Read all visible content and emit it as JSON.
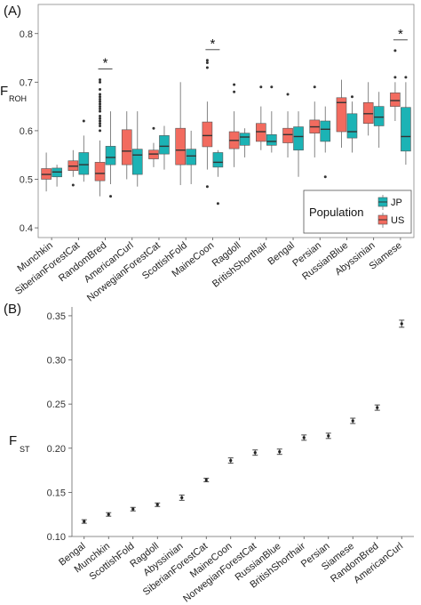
{
  "panel_a": {
    "label": "(A)"
  },
  "panel_b": {
    "label": "(B)"
  },
  "chart_data": [
    {
      "type": "box",
      "ylabel_main": "F",
      "ylabel_sub": "ROH",
      "ylim": [
        0.38,
        0.86
      ],
      "yticks": [
        "0.4",
        "0.5",
        "0.6",
        "0.7",
        "0.8"
      ],
      "legend": {
        "title": "Population",
        "placement": "bottom-right"
      },
      "categories": [
        "Munchkin",
        "SiberianForestCat",
        "RandomBred",
        "AmericanCurl",
        "NorwegianForestCat",
        "ScottishFold",
        "MaineCoon",
        "Ragdoll",
        "BritishShorthair",
        "Bengal",
        "Persian",
        "RussianBlue",
        "Abyssinian",
        "Siamese"
      ],
      "significant": [
        "RandomBred",
        "MaineCoon",
        "Siamese"
      ],
      "significance_mark": "*",
      "series": [
        {
          "name": "US",
          "color": "#f26b5f",
          "boxes": [
            {
              "whislo": 0.475,
              "q1": 0.5,
              "med": 0.51,
              "q3": 0.522,
              "whishi": 0.555,
              "fliers": []
            },
            {
              "whislo": 0.505,
              "q1": 0.518,
              "med": 0.527,
              "q3": 0.538,
              "whishi": 0.56,
              "fliers": [
                0.488
              ]
            },
            {
              "whislo": 0.465,
              "q1": 0.497,
              "med": 0.512,
              "q3": 0.535,
              "whishi": 0.58,
              "fliers": [
                0.6,
                0.61,
                0.615,
                0.62,
                0.625,
                0.63,
                0.64,
                0.645,
                0.65,
                0.655,
                0.66,
                0.665,
                0.67,
                0.675,
                0.685,
                0.7,
                0.705
              ]
            },
            {
              "whislo": 0.5,
              "q1": 0.53,
              "med": 0.558,
              "q3": 0.602,
              "whishi": 0.64,
              "fliers": []
            },
            {
              "whislo": 0.525,
              "q1": 0.542,
              "med": 0.552,
              "q3": 0.56,
              "whishi": 0.575,
              "fliers": [
                0.605
              ]
            },
            {
              "whislo": 0.488,
              "q1": 0.53,
              "med": 0.56,
              "q3": 0.605,
              "whishi": 0.7,
              "fliers": []
            },
            {
              "whislo": 0.52,
              "q1": 0.567,
              "med": 0.59,
              "q3": 0.618,
              "whishi": 0.66,
              "fliers": [
                0.485,
                0.73,
                0.74,
                0.745
              ]
            },
            {
              "whislo": 0.525,
              "q1": 0.563,
              "med": 0.58,
              "q3": 0.598,
              "whishi": 0.64,
              "fliers": [
                0.68,
                0.695
              ]
            },
            {
              "whislo": 0.56,
              "q1": 0.578,
              "med": 0.598,
              "q3": 0.615,
              "whishi": 0.65,
              "fliers": [
                0.69
              ]
            },
            {
              "whislo": 0.545,
              "q1": 0.575,
              "med": 0.592,
              "q3": 0.605,
              "whishi": 0.64,
              "fliers": [
                0.675
              ]
            },
            {
              "whislo": 0.545,
              "q1": 0.595,
              "med": 0.608,
              "q3": 0.622,
              "whishi": 0.66,
              "fliers": [
                0.69
              ]
            },
            {
              "whislo": 0.565,
              "q1": 0.598,
              "med": 0.658,
              "q3": 0.668,
              "whishi": 0.705,
              "fliers": []
            },
            {
              "whislo": 0.59,
              "q1": 0.615,
              "med": 0.635,
              "q3": 0.658,
              "whishi": 0.7,
              "fliers": []
            },
            {
              "whislo": 0.62,
              "q1": 0.65,
              "med": 0.662,
              "q3": 0.678,
              "whishi": 0.7,
              "fliers": [
                0.71,
                0.765
              ]
            }
          ]
        },
        {
          "name": "JP",
          "color": "#1cb3b5",
          "boxes": [
            {
              "whislo": 0.485,
              "q1": 0.505,
              "med": 0.515,
              "q3": 0.523,
              "whishi": 0.53,
              "fliers": []
            },
            {
              "whislo": 0.495,
              "q1": 0.51,
              "med": 0.53,
              "q3": 0.555,
              "whishi": 0.59,
              "fliers": [
                0.62
              ]
            },
            {
              "whislo": 0.49,
              "q1": 0.53,
              "med": 0.545,
              "q3": 0.568,
              "whishi": 0.64,
              "fliers": [
                0.465
              ]
            },
            {
              "whislo": 0.485,
              "q1": 0.51,
              "med": 0.55,
              "q3": 0.562,
              "whishi": 0.64,
              "fliers": []
            },
            {
              "whislo": 0.52,
              "q1": 0.552,
              "med": 0.568,
              "q3": 0.59,
              "whishi": 0.61,
              "fliers": []
            },
            {
              "whislo": 0.49,
              "q1": 0.53,
              "med": 0.548,
              "q3": 0.562,
              "whishi": 0.6,
              "fliers": []
            },
            {
              "whislo": 0.505,
              "q1": 0.525,
              "med": 0.535,
              "q3": 0.555,
              "whishi": 0.56,
              "fliers": [
                0.45
              ]
            },
            {
              "whislo": 0.545,
              "q1": 0.57,
              "med": 0.587,
              "q3": 0.595,
              "whishi": 0.605,
              "fliers": []
            },
            {
              "whislo": 0.555,
              "q1": 0.57,
              "med": 0.578,
              "q3": 0.592,
              "whishi": 0.64,
              "fliers": [
                0.69
              ]
            },
            {
              "whislo": 0.505,
              "q1": 0.56,
              "med": 0.588,
              "q3": 0.608,
              "whishi": 0.64,
              "fliers": []
            },
            {
              "whislo": 0.555,
              "q1": 0.578,
              "med": 0.603,
              "q3": 0.62,
              "whishi": 0.65,
              "fliers": [
                0.505
              ]
            },
            {
              "whislo": 0.555,
              "q1": 0.585,
              "med": 0.598,
              "q3": 0.635,
              "whishi": 0.66,
              "fliers": [
                0.67
              ]
            },
            {
              "whislo": 0.565,
              "q1": 0.61,
              "med": 0.628,
              "q3": 0.65,
              "whishi": 0.68,
              "fliers": []
            },
            {
              "whislo": 0.53,
              "q1": 0.558,
              "med": 0.588,
              "q3": 0.648,
              "whishi": 0.7,
              "fliers": [
                0.71
              ]
            }
          ]
        }
      ]
    },
    {
      "type": "scatter",
      "ylabel_main": "F",
      "ylabel_sub": "ST",
      "ylim": [
        0.1,
        0.36
      ],
      "yticks": [
        "0.10",
        "0.15",
        "0.20",
        "0.25",
        "0.30",
        "0.35"
      ],
      "categories": [
        "Bengal",
        "Munchkin",
        "ScottishFold",
        "Ragdoll",
        "Abyssinian",
        "SiberianForestCat",
        "MaineCoon",
        "NorwegianForestCat",
        "RussianBlue",
        "BritishShorthair",
        "Persian",
        "Siamese",
        "RandomBred",
        "AmericanCurl"
      ],
      "values": [
        0.117,
        0.125,
        0.131,
        0.136,
        0.144,
        0.164,
        0.186,
        0.195,
        0.196,
        0.212,
        0.214,
        0.231,
        0.246,
        0.341
      ],
      "errors": [
        0.002,
        0.002,
        0.002,
        0.002,
        0.003,
        0.002,
        0.003,
        0.003,
        0.003,
        0.003,
        0.003,
        0.003,
        0.003,
        0.004
      ]
    }
  ]
}
